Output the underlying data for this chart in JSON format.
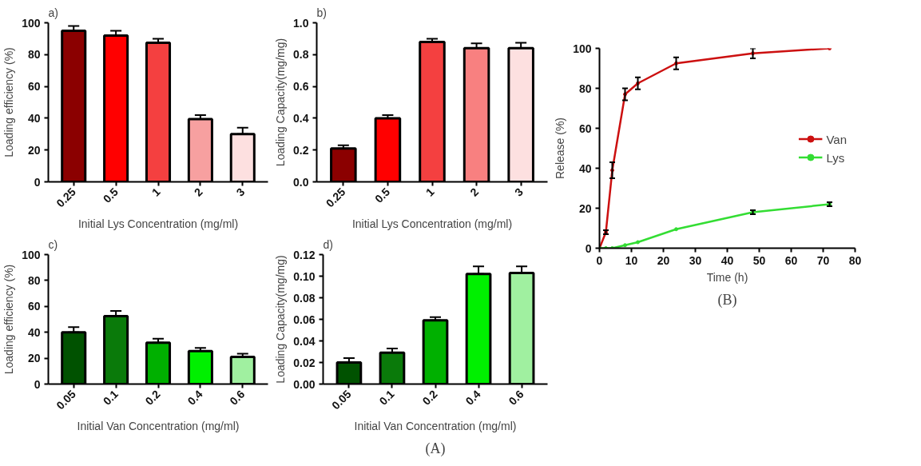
{
  "chart_data": [
    {
      "type": "bar",
      "title": "a)",
      "xlabel": "Initial Lys Concentration (mg/ml)",
      "ylabel": "Loading efficiency (%)",
      "categories": [
        "0.25",
        "0.5",
        "1",
        "2",
        "3"
      ],
      "values": [
        95,
        92,
        87.5,
        39.5,
        30
      ],
      "colors": [
        "#8b0000",
        "#ff0000",
        "#f44040",
        "#f7a0a0",
        "#fde0e0"
      ],
      "errors": [
        [
          95,
          98
        ],
        [
          92,
          95
        ],
        [
          87.5,
          90
        ],
        [
          39.5,
          42
        ],
        [
          30,
          34
        ]
      ],
      "ylim": [
        0,
        100
      ],
      "yticks": [
        0,
        20,
        40,
        60,
        80,
        100
      ]
    },
    {
      "type": "bar",
      "title": "b)",
      "xlabel": "Initial Lys Concentration (mg/ml)",
      "ylabel": "Loading Capacity(mg/mg)",
      "categories": [
        "0.25",
        "0.5",
        "1",
        "2",
        "3"
      ],
      "values": [
        0.21,
        0.4,
        0.88,
        0.84,
        0.84
      ],
      "colors": [
        "#8b0000",
        "#ff0000",
        "#f44040",
        "#f88080",
        "#fde0e0"
      ],
      "errors": [
        [
          0.21,
          0.23
        ],
        [
          0.4,
          0.42
        ],
        [
          0.88,
          0.9
        ],
        [
          0.84,
          0.87
        ],
        [
          0.84,
          0.875
        ]
      ],
      "ylim": [
        0,
        1.0
      ],
      "yticks": [
        {
          "value": 0,
          "label": "0.0"
        },
        0.2,
        0.4,
        0.6,
        0.8,
        {
          "value": 1,
          "label": "1.0"
        }
      ]
    },
    {
      "type": "bar",
      "title": "c)",
      "xlabel": "Initial Van Concentration (mg/ml)",
      "ylabel": "Loading efficiency (%)",
      "categories": [
        "0.05",
        "0.1",
        "0.2",
        "0.4",
        "0.6"
      ],
      "values": [
        40,
        52.5,
        32,
        25.5,
        21
      ],
      "colors": [
        "#005200",
        "#0a7a0a",
        "#00b000",
        "#00f000",
        "#a0f0a0"
      ],
      "errors": [
        [
          40,
          44
        ],
        [
          52.5,
          56.5
        ],
        [
          32,
          35
        ],
        [
          25.5,
          28
        ],
        [
          21,
          23.5
        ]
      ],
      "ylim": [
        0,
        100
      ],
      "yticks": [
        0,
        20,
        40,
        60,
        80,
        100
      ]
    },
    {
      "type": "bar",
      "title": "d)",
      "xlabel": "Initial Van Concentration (mg/ml)",
      "ylabel": "Loading Capacity(mg/mg)",
      "categories": [
        "0.05",
        "0.1",
        "0.2",
        "0.4",
        "0.6"
      ],
      "values": [
        0.02,
        0.029,
        0.059,
        0.102,
        0.103
      ],
      "colors": [
        "#005200",
        "#0a7a0a",
        "#00b000",
        "#00f000",
        "#a0f0a0"
      ],
      "errors": [
        [
          0.02,
          0.024
        ],
        [
          0.029,
          0.033
        ],
        [
          0.059,
          0.062
        ],
        [
          0.102,
          0.109
        ],
        [
          0.103,
          0.109
        ]
      ],
      "ylim": [
        0,
        0.12
      ],
      "yticks": [
        {
          "value": 0,
          "label": "0.00"
        },
        0.02,
        0.04,
        0.06,
        0.08,
        {
          "value": 0.1,
          "label": "0.10"
        },
        0.12
      ],
      "annotations": [
        "(A)"
      ]
    },
    {
      "type": "line",
      "xlabel": "Time (h)",
      "ylabel": "Release (%)",
      "x": [
        0,
        2,
        4,
        8,
        12,
        24,
        48,
        72
      ],
      "marker": "circle",
      "legend": "right",
      "xlim": [
        0,
        80
      ],
      "xticks": [
        0,
        10,
        20,
        30,
        40,
        50,
        60,
        70,
        80
      ],
      "ylim": [
        0,
        100
      ],
      "yticks": [
        0,
        20,
        40,
        60,
        80,
        100
      ],
      "annotations": [
        "(B)"
      ],
      "series": [
        {
          "name": "Van",
          "color": "#cc1010",
          "values": [
            0,
            8,
            39,
            77,
            82.5,
            92.5,
            97.5,
            100
          ],
          "errors": [
            null,
            1,
            4,
            3,
            3,
            3,
            2.5,
            null
          ]
        },
        {
          "name": "Lys",
          "color": "#33dd33",
          "values": [
            0,
            0,
            0,
            1.5,
            3,
            9.5,
            18,
            22
          ],
          "errors": [
            null,
            null,
            null,
            null,
            null,
            null,
            1,
            1
          ]
        }
      ]
    }
  ]
}
